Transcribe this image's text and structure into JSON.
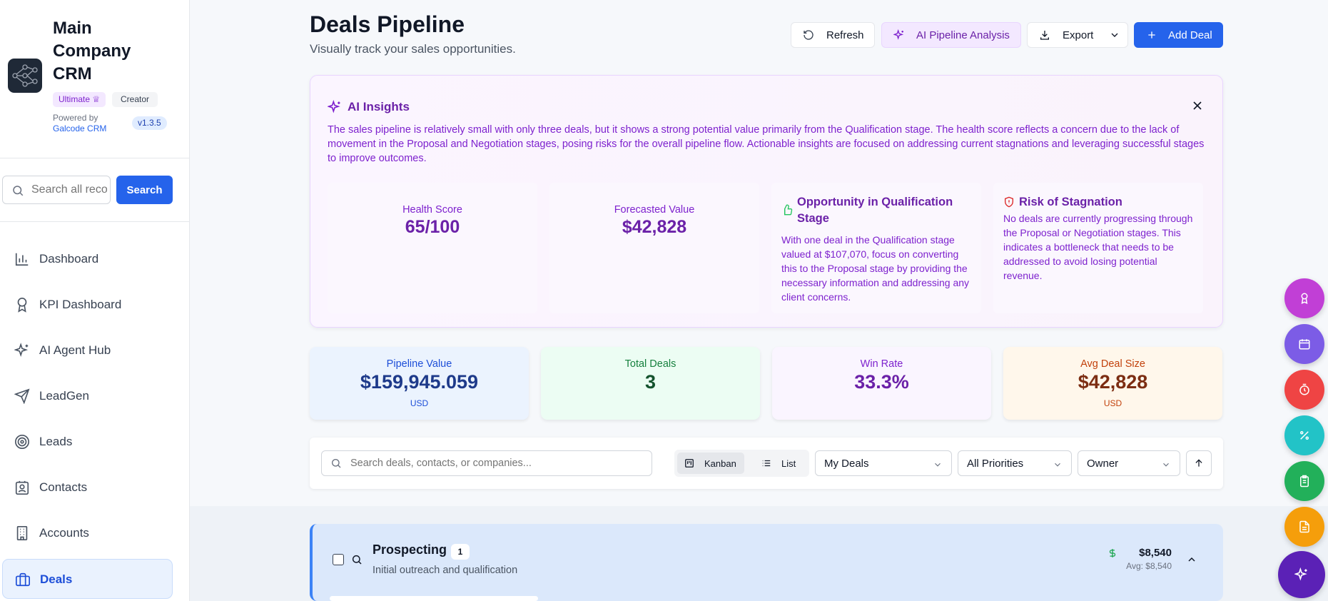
{
  "sidebar": {
    "brand_title": "Main Company CRM",
    "badge_ultimate": "Ultimate ♕",
    "badge_creator": "Creator",
    "powered_by": "Powered by",
    "powered_link": "Galcode CRM",
    "version": "v1.3.5",
    "search_placeholder": "Search all records",
    "search_button": "Search",
    "nav": [
      {
        "label": "Dashboard",
        "icon": "bar-chart-icon"
      },
      {
        "label": "KPI Dashboard",
        "icon": "award-icon"
      },
      {
        "label": "AI Agent Hub",
        "icon": "sparkles-icon"
      },
      {
        "label": "LeadGen",
        "icon": "send-icon"
      },
      {
        "label": "Leads",
        "icon": "target-icon"
      },
      {
        "label": "Contacts",
        "icon": "contact-icon"
      },
      {
        "label": "Accounts",
        "icon": "building-icon"
      },
      {
        "label": "Deals",
        "icon": "briefcase-icon",
        "active": true
      }
    ]
  },
  "header": {
    "title": "Deals Pipeline",
    "subtitle": "Visually track your sales opportunities.",
    "refresh": "Refresh",
    "ai_analysis": "AI Pipeline Analysis",
    "export": "Export",
    "add_deal": "Add Deal"
  },
  "ai_insights": {
    "title": "AI Insights",
    "summary": "The sales pipeline is relatively small with only three deals, but it shows a strong potential value primarily from the Qualification stage. The health score reflects a concern due to the lack of movement in the Proposal and Negotiation stages, posing risks for the overall pipeline flow. Actionable insights are focused on addressing current stagnations and leveraging successful stages to improve outcomes.",
    "health_label": "Health Score",
    "health_value": "65/100",
    "forecast_label": "Forecasted Value",
    "forecast_value": "$42,828",
    "opportunity_title": "Opportunity in Qualification Stage",
    "opportunity_body": "With one deal in the Qualification stage valued at $107,070, focus on converting this to the Proposal stage by providing the necessary information and addressing any client concerns.",
    "risk_title": "Risk of Stagnation",
    "risk_body": "No deals are currently progressing through the Proposal or Negotiation stages. This indicates a bottleneck that needs to be addressed to avoid losing potential revenue."
  },
  "stats": {
    "pipeline_label": "Pipeline Value",
    "pipeline_value": "$159,945.059",
    "pipeline_currency": "USD",
    "total_label": "Total Deals",
    "total_value": "3",
    "win_label": "Win Rate",
    "win_value": "33.3%",
    "avg_label": "Avg Deal Size",
    "avg_value": "$42,828",
    "avg_currency": "USD"
  },
  "filters": {
    "search_placeholder": "Search deals, contacts, or companies...",
    "kanban": "Kanban",
    "list": "List",
    "scope": "My Deals",
    "priority": "All Priorities",
    "owner": "Owner"
  },
  "stage": {
    "title": "Prospecting",
    "count": "1",
    "description": "Initial outreach and qualification",
    "amount": "$8,540",
    "avg": "Avg: $8,540"
  },
  "colors": {
    "primary": "#2563eb",
    "purple": "#7e22ce",
    "fab_purple": "#c13fd6",
    "fab_violet": "#7c5ce6",
    "fab_red": "#ef4444",
    "fab_teal": "#22c3c7",
    "fab_green": "#22b05a",
    "fab_orange": "#f59e0b",
    "fab_indigo": "#5b21b6"
  },
  "fabs": [
    "award-icon",
    "calendar-icon",
    "timer-icon",
    "percent-icon",
    "clipboard-icon",
    "document-icon",
    "sparkles-icon"
  ]
}
